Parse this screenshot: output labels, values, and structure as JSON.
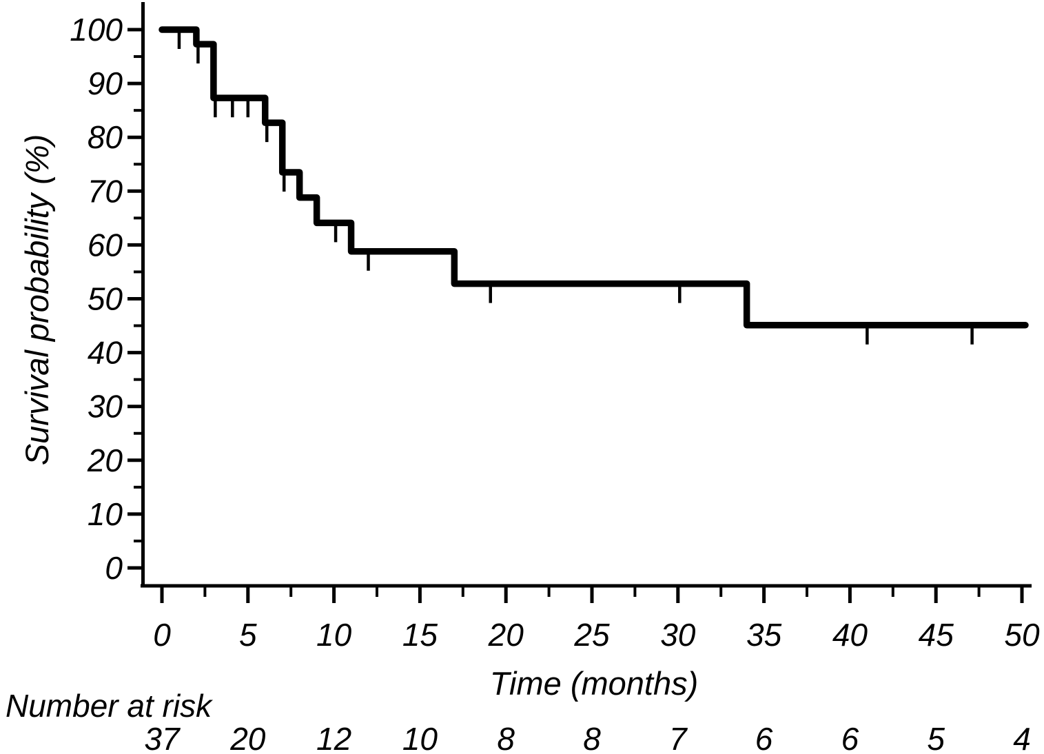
{
  "figure": {
    "background": "#ffffff",
    "ink": "#000000"
  },
  "chart_data": {
    "type": "line",
    "subtype": "kaplan-meier-step-curve",
    "title": "",
    "xlabel": "Time (months)",
    "ylabel": "Survival probability (%)",
    "xlim": [
      0,
      50
    ],
    "ylim": [
      0,
      100
    ],
    "x_major_ticks": [
      0,
      5,
      10,
      15,
      20,
      25,
      30,
      35,
      40,
      45,
      50
    ],
    "x_minor_ticks": [
      2.5,
      7.5,
      12.5,
      17.5,
      22.5,
      27.5,
      32.5,
      37.5,
      42.5,
      47.5
    ],
    "y_major_ticks": [
      0,
      10,
      20,
      30,
      40,
      50,
      60,
      70,
      80,
      90,
      100
    ],
    "y_minor_ticks": [
      5,
      15,
      25,
      35,
      45,
      55,
      65,
      75,
      85,
      95
    ],
    "grid": "off",
    "legend": "none",
    "series": [
      {
        "name": "survival-curve",
        "color": "#000000",
        "steps": [
          {
            "t": 0,
            "s": 100
          },
          {
            "t": 2,
            "s": 97.3
          },
          {
            "t": 3,
            "s": 87.3
          },
          {
            "t": 6,
            "s": 82.7
          },
          {
            "t": 7,
            "s": 73.5
          },
          {
            "t": 8,
            "s": 68.8
          },
          {
            "t": 9,
            "s": 64.1
          },
          {
            "t": 11,
            "s": 58.8
          },
          {
            "t": 17,
            "s": 52.8
          },
          {
            "t": 34,
            "s": 45.1
          }
        ],
        "end_t": 50.2,
        "censor_marks": [
          {
            "t": 1,
            "s": 100
          },
          {
            "t": 2.1,
            "s": 97.3
          },
          {
            "t": 3.1,
            "s": 87.3
          },
          {
            "t": 4.1,
            "s": 87.3
          },
          {
            "t": 5.0,
            "s": 87.3
          },
          {
            "t": 6.1,
            "s": 82.7
          },
          {
            "t": 7.1,
            "s": 73.5
          },
          {
            "t": 10.1,
            "s": 64.1
          },
          {
            "t": 12,
            "s": 58.8
          },
          {
            "t": 19.1,
            "s": 52.8
          },
          {
            "t": 30.1,
            "s": 52.8
          },
          {
            "t": 41,
            "s": 45.1
          },
          {
            "t": 47.1,
            "s": 45.1
          }
        ]
      }
    ],
    "number_at_risk": {
      "label": "Number at risk",
      "times": [
        0,
        5,
        10,
        15,
        20,
        25,
        30,
        35,
        40,
        45,
        50
      ],
      "counts": [
        37,
        20,
        12,
        10,
        8,
        8,
        7,
        6,
        6,
        5,
        4
      ]
    }
  }
}
